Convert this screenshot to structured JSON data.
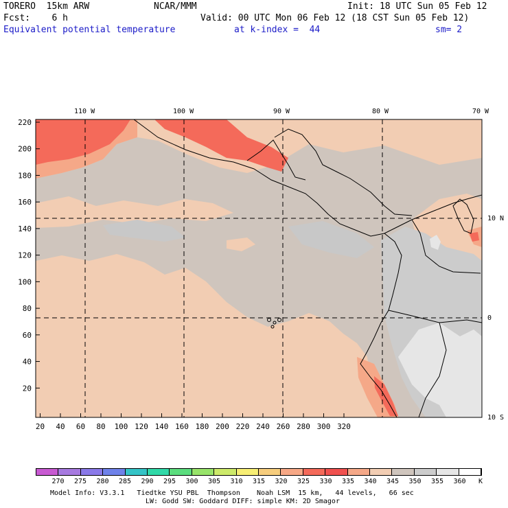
{
  "header": {
    "model": "TORERO  15km ARW",
    "org": "NCAR/MMM",
    "init": "Init: 18 UTC Sun 05 Feb 12",
    "fcst": "Fcst:    6 h",
    "valid": "Valid: 00 UTC Mon 06 Feb 12 (18 CST Sun 05 Feb 12)",
    "field": "Equivalent potential temperature",
    "level": "at k-index =  44",
    "smooth": "sm= 2"
  },
  "map": {
    "top_lon_labels": [
      "110 W",
      "100 W",
      "90 W",
      "80 W",
      "70 W"
    ],
    "right_lat_labels": [
      "10 N",
      "0",
      "10 S"
    ],
    "y_axis_ticks": [
      "220",
      "200",
      "180",
      "160",
      "140",
      "120",
      "100",
      "80",
      "60",
      "40",
      "20"
    ],
    "x_axis_ticks": [
      "20",
      "40",
      "60",
      "80",
      "100",
      "120",
      "140",
      "160",
      "180",
      "200",
      "220",
      "240",
      "260",
      "280",
      "300",
      "320"
    ],
    "colors": {
      "background_field": "#cfc5bd",
      "warm_band_340": "#f2cdb3",
      "band_335": "#f5a888",
      "band_330": "#f46a5a",
      "band_325": "#f0514f",
      "cool_350": "#cccccc",
      "cool_355": "#e6e6e6"
    }
  },
  "colorbar": {
    "labels": [
      "270",
      "275",
      "280",
      "285",
      "290",
      "295",
      "300",
      "305",
      "310",
      "315",
      "320",
      "325",
      "330",
      "335",
      "340",
      "345",
      "350",
      "355",
      "360"
    ],
    "unit": "K",
    "colors": [
      "#c85ad2",
      "#a77ae0",
      "#8a79e8",
      "#6f82ea",
      "#35c4c7",
      "#30d9a8",
      "#5bdd7e",
      "#98e46a",
      "#cdea6a",
      "#f7ee74",
      "#f7cd7d",
      "#f7a886",
      "#f46a5a",
      "#f0514f",
      "#f5a888",
      "#f2cdb3",
      "#cfc5bd",
      "#cccccc",
      "#e6e6e6",
      "#ffffff"
    ]
  },
  "footer": {
    "line1": "Model Info: V3.3.1   Tiedtke YSU PBL  Thompson    Noah LSM  15 km,   44 levels,   66 sec",
    "line2": "LW: Godd SW: Goddard DIFF: simple KM: 2D Smagor"
  }
}
